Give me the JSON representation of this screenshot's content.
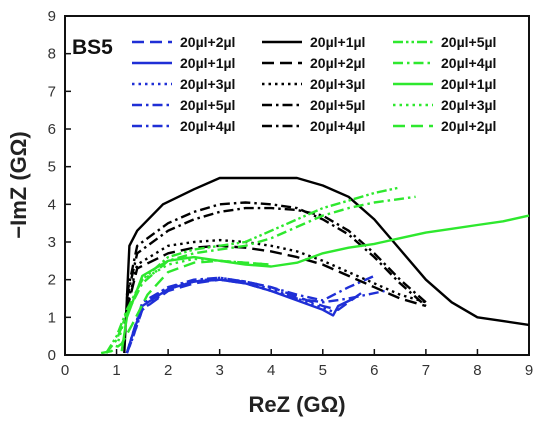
{
  "chart_data": {
    "type": "line",
    "panel_label": "BS5",
    "xlabel": "ReZ (GΩ)",
    "ylabel": "−ImZ (GΩ)",
    "xlim": [
      0,
      9
    ],
    "ylim": [
      0,
      9
    ],
    "xticks": [
      "0",
      "1",
      "2",
      "3",
      "4",
      "5",
      "6",
      "7",
      "8",
      "9"
    ],
    "yticks": [
      "0",
      "1",
      "2",
      "3",
      "4",
      "5",
      "6",
      "7",
      "8",
      "9"
    ],
    "grid": false,
    "legend_position": "top",
    "colors": {
      "blue": "#1f2fd6",
      "black": "#000000",
      "green": "#2ee82e"
    },
    "series": [
      {
        "name": "20µl+2µl",
        "color": "blue",
        "dash": "longdash",
        "x": [
          1.2,
          1.3,
          1.5,
          2.0,
          2.5,
          3.0,
          3.5,
          4.0,
          4.5,
          5.0,
          5.3,
          5.5,
          5.8
        ],
        "y": [
          0.05,
          0.4,
          1.2,
          1.7,
          1.9,
          2.0,
          1.95,
          1.8,
          1.55,
          1.3,
          1.2,
          1.4,
          1.7
        ]
      },
      {
        "name": "20µl+1µl",
        "color": "blue",
        "dash": "solid",
        "x": [
          1.2,
          1.3,
          1.5,
          2.0,
          2.5,
          3.0,
          3.5,
          4.0,
          4.5,
          5.0,
          5.2,
          5.3,
          5.6,
          5.7
        ],
        "y": [
          0.05,
          0.5,
          1.3,
          1.75,
          1.95,
          2.0,
          1.9,
          1.7,
          1.45,
          1.2,
          1.05,
          1.3,
          1.5,
          1.6
        ]
      },
      {
        "name": "20µl+3µl",
        "color": "blue",
        "dash": "dot",
        "x": [
          1.2,
          1.3,
          1.5,
          2.0,
          2.5,
          3.0,
          3.5,
          4.0,
          4.5,
          5.0,
          5.2
        ],
        "y": [
          0.05,
          0.4,
          1.2,
          1.75,
          1.95,
          2.05,
          1.95,
          1.75,
          1.5,
          1.25,
          1.15
        ]
      },
      {
        "name": "20µl+5µl",
        "color": "blue",
        "dash": "dashdot",
        "x": [
          1.2,
          1.3,
          1.5,
          2.0,
          2.5,
          3.0,
          3.5,
          4.0,
          4.5,
          5.0,
          5.5,
          6.0
        ],
        "y": [
          0.05,
          0.5,
          1.4,
          1.8,
          2.0,
          2.05,
          1.95,
          1.8,
          1.6,
          1.45,
          1.8,
          2.1
        ]
      },
      {
        "name": "20µl+4µl",
        "color": "blue",
        "dash": "dashdot",
        "x": [
          1.2,
          1.3,
          1.5,
          2.0,
          2.5,
          3.0,
          3.5,
          4.0,
          4.5,
          5.0,
          5.5,
          6.2
        ],
        "y": [
          0.05,
          0.5,
          1.35,
          1.8,
          1.95,
          2.0,
          1.9,
          1.7,
          1.5,
          1.4,
          1.5,
          1.7
        ]
      },
      {
        "name": "20µl+1µl",
        "color": "black",
        "dash": "solid",
        "x": [
          1.15,
          1.25,
          1.4,
          1.9,
          2.5,
          3.0,
          3.5,
          4.0,
          4.5,
          5.0,
          5.5,
          6.0,
          6.5,
          7.0,
          7.5,
          8.0,
          8.5,
          9.0
        ],
        "y": [
          0.05,
          2.9,
          3.3,
          4.0,
          4.4,
          4.7,
          4.7,
          4.7,
          4.7,
          4.5,
          4.2,
          3.6,
          2.8,
          2.0,
          1.4,
          1.0,
          0.9,
          0.8
        ]
      },
      {
        "name": "20µl+2µl",
        "color": "black",
        "dash": "longdash",
        "x": [
          1.2,
          1.4,
          2.0,
          2.5,
          3.0,
          3.5,
          4.0,
          4.5,
          5.0,
          5.5,
          6.0,
          6.5,
          7.0
        ],
        "y": [
          1.2,
          2.3,
          2.7,
          2.85,
          2.9,
          2.85,
          2.75,
          2.6,
          2.4,
          2.1,
          1.8,
          1.5,
          1.3
        ]
      },
      {
        "name": "20µl+3µl",
        "color": "black",
        "dash": "dot",
        "x": [
          1.2,
          1.4,
          2.0,
          2.5,
          3.0,
          3.5,
          4.0,
          4.5,
          5.0,
          5.5,
          6.0,
          6.5,
          7.0
        ],
        "y": [
          1.3,
          2.4,
          2.9,
          3.0,
          3.05,
          3.0,
          2.9,
          2.75,
          2.5,
          2.2,
          1.9,
          1.6,
          1.4
        ]
      },
      {
        "name": "20µl+5µl",
        "color": "black",
        "dash": "dashdot",
        "x": [
          1.2,
          1.4,
          2.0,
          2.5,
          3.0,
          3.5,
          4.0,
          4.5,
          5.0,
          5.5,
          6.0,
          6.5,
          7.0
        ],
        "y": [
          1.5,
          2.7,
          3.3,
          3.6,
          3.8,
          3.9,
          3.9,
          3.85,
          3.7,
          3.3,
          2.7,
          2.0,
          1.4
        ]
      },
      {
        "name": "20µl+4µl",
        "color": "black",
        "dash": "dashdot",
        "x": [
          1.2,
          1.4,
          2.0,
          2.5,
          3.0,
          3.5,
          4.0,
          4.5,
          5.0,
          5.5,
          6.0,
          6.5,
          7.0
        ],
        "y": [
          1.6,
          2.9,
          3.5,
          3.8,
          4.0,
          4.05,
          4.0,
          3.9,
          3.6,
          3.2,
          2.6,
          1.9,
          1.3
        ]
      },
      {
        "name": "20µl+5µl",
        "color": "green",
        "dash": "dashdotdot",
        "x": [
          0.8,
          1.0,
          1.2,
          1.5,
          2.0,
          2.5,
          3.0,
          3.5,
          4.0,
          4.5,
          5.0,
          5.5,
          6.0,
          6.5
        ],
        "y": [
          0.05,
          0.5,
          1.2,
          2.0,
          2.6,
          2.8,
          2.9,
          3.0,
          3.3,
          3.6,
          3.9,
          4.1,
          4.3,
          4.45
        ]
      },
      {
        "name": "20µl+4µl",
        "color": "green",
        "dash": "dashdot",
        "x": [
          0.8,
          1.0,
          1.2,
          1.5,
          2.0,
          2.5,
          3.0,
          3.5,
          4.0,
          4.5,
          5.0,
          5.5,
          6.0,
          6.8
        ],
        "y": [
          0.05,
          0.4,
          1.1,
          1.9,
          2.5,
          2.7,
          2.8,
          2.9,
          3.1,
          3.4,
          3.7,
          3.9,
          4.05,
          4.2
        ]
      },
      {
        "name": "20µl+1µl",
        "color": "green",
        "dash": "solid",
        "x": [
          1.1,
          1.2,
          1.5,
          2.0,
          2.5,
          3.0,
          3.5,
          4.0,
          4.5,
          5.0,
          5.5,
          6.0,
          6.5,
          7.0,
          7.5,
          8.0,
          8.5,
          9.0
        ],
        "y": [
          0.1,
          1.0,
          2.1,
          2.5,
          2.6,
          2.5,
          2.4,
          2.35,
          2.45,
          2.7,
          2.85,
          2.95,
          3.1,
          3.25,
          3.35,
          3.45,
          3.55,
          3.7
        ]
      },
      {
        "name": "20µl+3µl",
        "color": "green",
        "dash": "dot",
        "x": [
          1.0,
          1.2,
          1.5,
          2.0,
          2.5,
          3.0,
          3.5,
          4.0
        ],
        "y": [
          0.2,
          1.2,
          2.0,
          2.4,
          2.55,
          2.5,
          2.45,
          2.4
        ]
      },
      {
        "name": "20µl+2µl",
        "color": "green",
        "dash": "longdash",
        "x": [
          0.7,
          0.9,
          1.1,
          1.3,
          1.6,
          2.0,
          2.5,
          3.0,
          3.5,
          4.0
        ],
        "y": [
          0.05,
          0.1,
          0.3,
          0.8,
          1.6,
          2.2,
          2.45,
          2.5,
          2.45,
          2.4
        ]
      }
    ]
  }
}
